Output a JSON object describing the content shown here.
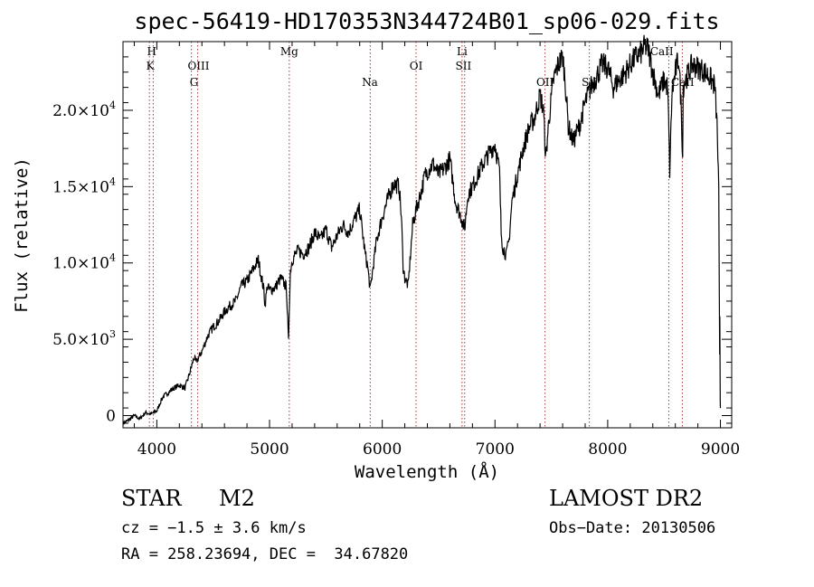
{
  "chart_data": {
    "type": "line",
    "title": "spec-56419-HD170353N344724B01_sp06-029.fits",
    "xlabel": "Wavelength (Å)",
    "ylabel": "Flux (relative)",
    "xlim": [
      3700,
      9100
    ],
    "ylim": [
      -800,
      24500
    ],
    "grid": false,
    "x_ticks": [
      {
        "value": 4000,
        "label": "4000"
      },
      {
        "value": 5000,
        "label": "5000"
      },
      {
        "value": 6000,
        "label": "6000"
      },
      {
        "value": 7000,
        "label": "7000"
      },
      {
        "value": 8000,
        "label": "8000"
      },
      {
        "value": 9000,
        "label": "9000"
      }
    ],
    "y_ticks": [
      {
        "value": 0,
        "label": "0",
        "mantissa": "",
        "exponent": ""
      },
      {
        "value": 5000,
        "label": "",
        "mantissa": "5.0×10",
        "exponent": "3"
      },
      {
        "value": 10000,
        "label": "",
        "mantissa": "1.0×10",
        "exponent": "4"
      },
      {
        "value": 15000,
        "label": "",
        "mantissa": "1.5×10",
        "exponent": "4"
      },
      {
        "value": 20000,
        "label": "",
        "mantissa": "2.0×10",
        "exponent": "4"
      }
    ],
    "series": [
      {
        "x": [
          3700,
          3750,
          3800,
          3850,
          3900,
          3950,
          4000,
          4050,
          4100,
          4150,
          4200,
          4250,
          4280,
          4300,
          4330,
          4350,
          4400,
          4450,
          4500,
          4550,
          4600,
          4650,
          4700,
          4750,
          4800,
          4850,
          4900,
          4950,
          4960,
          4980,
          5000,
          5050,
          5100,
          5150,
          5168,
          5175,
          5185,
          5200,
          5250,
          5300,
          5350,
          5400,
          5450,
          5500,
          5550,
          5600,
          5650,
          5700,
          5750,
          5800,
          5850,
          5870,
          5893,
          5920,
          5950,
          6000,
          6050,
          6100,
          6150,
          6170,
          6185,
          6200,
          6230,
          6270,
          6300,
          6350,
          6380,
          6420,
          6450,
          6500,
          6550,
          6600,
          6650,
          6700,
          6730,
          6760,
          6800,
          6850,
          6900,
          6950,
          7000,
          7040,
          7055,
          7070,
          7100,
          7125,
          7150,
          7200,
          7250,
          7300,
          7350,
          7400,
          7430,
          7450,
          7480,
          7520,
          7560,
          7600,
          7620,
          7650,
          7680,
          7700,
          7720,
          7750,
          7800,
          7850,
          7900,
          7950,
          8000,
          8050,
          8100,
          8150,
          8200,
          8250,
          8300,
          8330,
          8360,
          8400,
          8450,
          8500,
          8530,
          8540,
          8550,
          8570,
          8600,
          8630,
          8650,
          8665,
          8670,
          8690,
          8720,
          8750,
          8800,
          8850,
          8900,
          8950,
          8970,
          8985,
          8990,
          8993,
          8995,
          8998,
          9000
        ],
        "y": [
          -500,
          -300,
          0,
          -200,
          200,
          100,
          300,
          1200,
          1500,
          1800,
          2000,
          1800,
          2500,
          3000,
          3800,
          3500,
          4200,
          5200,
          5800,
          6200,
          6800,
          7200,
          7500,
          8500,
          8800,
          9500,
          10200,
          8200,
          7200,
          8500,
          8200,
          8400,
          9000,
          8400,
          4800,
          7000,
          9500,
          10200,
          10800,
          10600,
          11000,
          12000,
          11500,
          12200,
          11000,
          11800,
          12500,
          12000,
          12800,
          13500,
          10500,
          9800,
          8200,
          9800,
          11500,
          13000,
          14200,
          15200,
          15000,
          13000,
          9800,
          9000,
          8500,
          12500,
          13500,
          14800,
          15800,
          16200,
          16500,
          15800,
          16200,
          16800,
          14000,
          13000,
          12200,
          14500,
          15000,
          15800,
          16600,
          17200,
          17800,
          16000,
          12000,
          11000,
          10500,
          11500,
          14000,
          15800,
          17500,
          18800,
          19500,
          21000,
          20000,
          16800,
          19500,
          22000,
          23000,
          23500,
          22200,
          19000,
          18200,
          18000,
          18500,
          19000,
          20500,
          21500,
          22200,
          23000,
          22800,
          21500,
          22000,
          22400,
          23000,
          23500,
          23800,
          24200,
          24000,
          22500,
          21000,
          22000,
          21500,
          19500,
          16000,
          21000,
          22500,
          23500,
          20500,
          17000,
          21500,
          22000,
          22500,
          23000,
          22800,
          22600,
          22200,
          21600,
          19000,
          15000,
          8000,
          4000,
          6500,
          1000,
          500
        ]
      }
    ],
    "lines": [
      {
        "wavelength": 3934
      },
      {
        "wavelength": 3968
      },
      {
        "wavelength": 4307
      },
      {
        "wavelength": 4363
      },
      {
        "wavelength": 5175
      },
      {
        "wavelength": 5893
      },
      {
        "wavelength": 6300
      },
      {
        "wavelength": 6708
      },
      {
        "wavelength": 6731
      },
      {
        "wavelength": 7444
      },
      {
        "wavelength": 7837
      },
      {
        "wavelength": 8542
      },
      {
        "wavelength": 8662
      }
    ],
    "annotations": [
      {
        "text": "H",
        "wavelength": 3955,
        "row": 1
      },
      {
        "text": "K",
        "wavelength": 3942,
        "row": 2
      },
      {
        "text": "OIII",
        "wavelength": 4370,
        "row": 2
      },
      {
        "text": "G",
        "wavelength": 4330,
        "row": 3
      },
      {
        "text": "Mg",
        "wavelength": 5175,
        "row": 1
      },
      {
        "text": "Na",
        "wavelength": 5890,
        "row": 3
      },
      {
        "text": "OI",
        "wavelength": 6300,
        "row": 2
      },
      {
        "text": "Li",
        "wavelength": 6708,
        "row": 1
      },
      {
        "text": "SII",
        "wavelength": 6720,
        "row": 2
      },
      {
        "text": "OII",
        "wavelength": 7444,
        "row": 3
      },
      {
        "text": "SiI",
        "wavelength": 7837,
        "row": 3
      },
      {
        "text": "CaII",
        "wavelength": 8480,
        "row": 1
      },
      {
        "text": "CaII",
        "wavelength": 8665,
        "row": 3
      }
    ]
  },
  "info": {
    "object_class": "STAR",
    "subclass": "M2",
    "survey": "LAMOST DR2",
    "cz": "cz = −1.5 ± 3.6 km/s",
    "obs_date": "Obs−Date: 20130506",
    "coords": "RA = 258.23694, DEC =  34.67820"
  },
  "colors": {
    "spectrum": "#000000",
    "line_markers": "#b03030",
    "axes": "#000000"
  }
}
